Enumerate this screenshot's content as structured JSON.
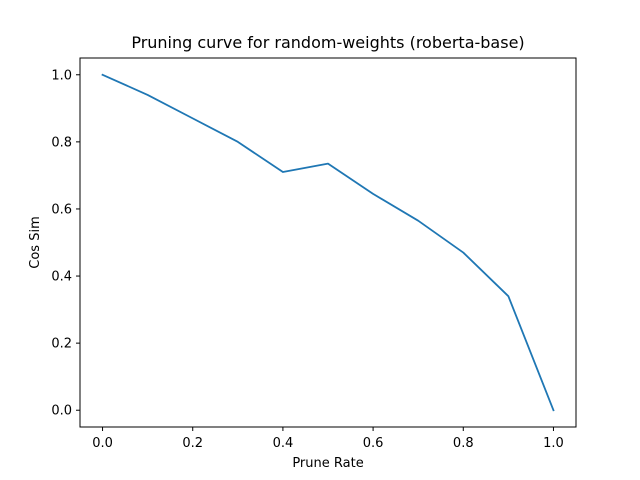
{
  "chart_data": {
    "type": "line",
    "title": "Pruning curve for random-weights (roberta-base)",
    "xlabel": "Prune Rate",
    "ylabel": "Cos Sim",
    "xlim": [
      -0.05,
      1.05
    ],
    "ylim": [
      -0.05,
      1.05
    ],
    "xticks": [
      0.0,
      0.2,
      0.4,
      0.6,
      0.8,
      1.0
    ],
    "xtick_labels": [
      "0.0",
      "0.2",
      "0.4",
      "0.6",
      "0.8",
      "1.0"
    ],
    "yticks": [
      0.0,
      0.2,
      0.4,
      0.6,
      0.8,
      1.0
    ],
    "ytick_labels": [
      "0.0",
      "0.2",
      "0.4",
      "0.6",
      "0.8",
      "1.0"
    ],
    "grid": false,
    "legend": false,
    "series": [
      {
        "color": "#1f77b4",
        "x": [
          0.0,
          0.1,
          0.2,
          0.3,
          0.4,
          0.5,
          0.6,
          0.7,
          0.8,
          0.9,
          1.0
        ],
        "y": [
          1.0,
          0.94,
          0.87,
          0.8,
          0.71,
          0.735,
          0.645,
          0.565,
          0.47,
          0.34,
          0.0
        ]
      }
    ]
  }
}
